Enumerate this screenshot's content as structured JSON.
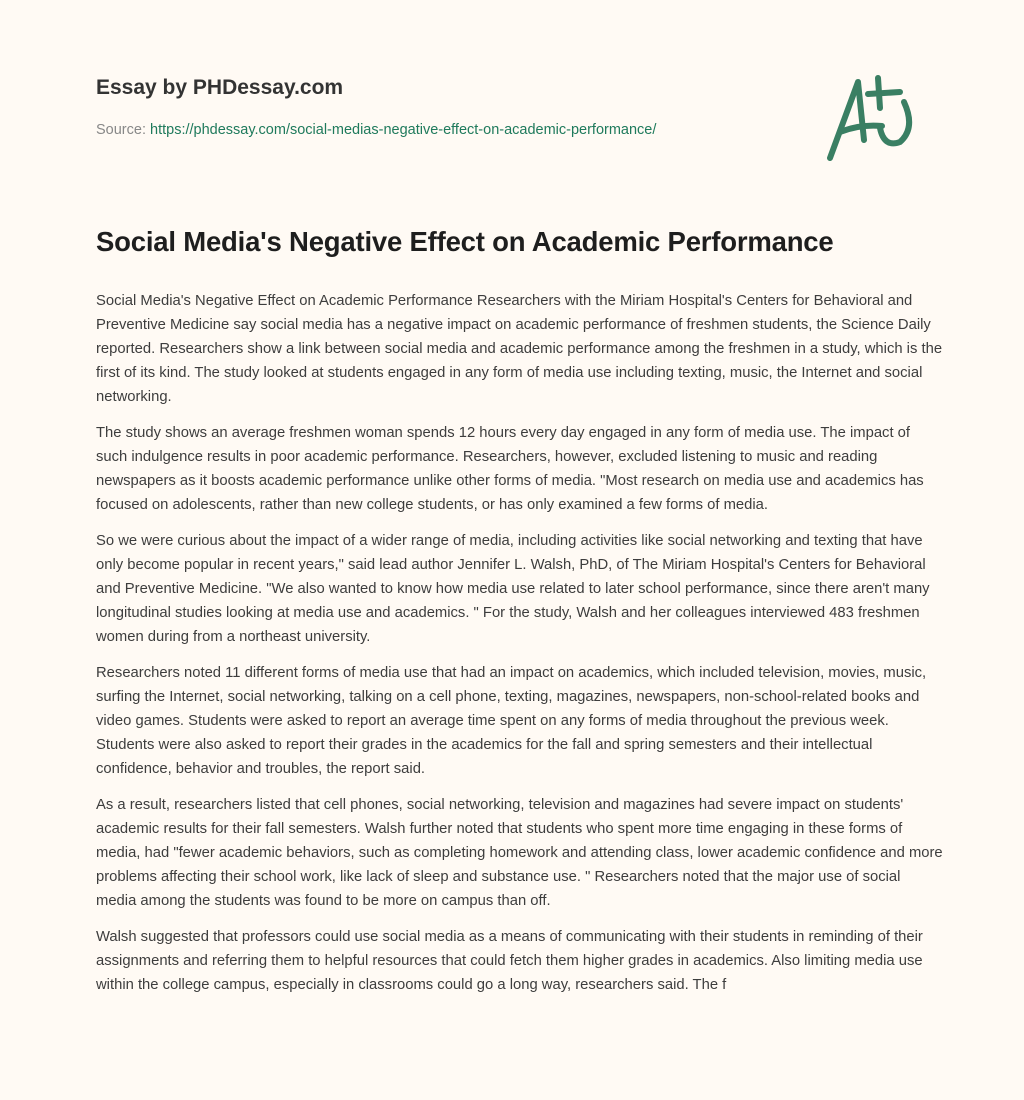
{
  "header": {
    "brand": "Essay by PHDessay.com",
    "source_label": "Source:",
    "source_url": "https://phdessay.com/social-medias-negative-effect-on-academic-performance/",
    "logo_text": "A+",
    "accent_color": "#3a7f63"
  },
  "essay": {
    "title": "Social Media's Negative Effect on Academic Performance",
    "paragraphs": [
      "Social Media's Negative Effect on Academic Performance Researchers with the Miriam Hospital's Centers for Behavioral and Preventive Medicine say social media has a negative impact on academic performance of freshmen students, the Science Daily reported. Researchers show a link between social media and academic performance among the freshmen in a study, which is the first of its kind. The study looked at students engaged in any form of media use including texting, music, the Internet and social networking.",
      "The study shows an average freshmen woman spends 12 hours every day engaged in any form of media use. The impact of such indulgence results in poor academic performance. Researchers, however, excluded listening to music and reading newspapers as it boosts academic performance unlike other forms of media. \"Most research on media use and academics has focused on adolescents, rather than new college students, or has only examined a few forms of media.",
      "So we were curious about the impact of a wider range of media, including activities like social networking and texting that have only become popular in recent years,\" said lead author Jennifer L. Walsh, PhD, of The Miriam Hospital's Centers for Behavioral and Preventive Medicine. \"We also wanted to know how media use related to later school performance, since there aren't many longitudinal studies looking at media use and academics. \" For the study, Walsh and her colleagues interviewed 483 freshmen women during from a northeast university.",
      "Researchers noted 11 different forms of media use that had an impact on academics, which included television, movies, music, surfing the Internet, social networking, talking on a cell phone, texting, magazines, newspapers, non-school-related books and video games. Students were asked to report an average time spent on any forms of media throughout the previous week. Students were also asked to report their grades in the academics for the fall and spring semesters and their intellectual confidence, behavior and troubles, the report said.",
      "As a result, researchers listed that cell phones, social networking, television and magazines had severe impact on students' academic results for their fall semesters. Walsh further noted that students who spent more time engaging in these forms of media, had \"fewer academic behaviors, such as completing homework and attending class, lower academic confidence and more problems affecting their school work, like lack of sleep and substance use. \" Researchers noted that the major use of social media among the students was found to be more on campus than off.",
      "Walsh suggested that professors could use social media as a means of communicating with their students in reminding of their assignments and referring them to helpful resources that could fetch them higher grades in academics. Also limiting media use within the college campus, especially in classrooms could go a long way, researchers said. The f"
    ]
  }
}
